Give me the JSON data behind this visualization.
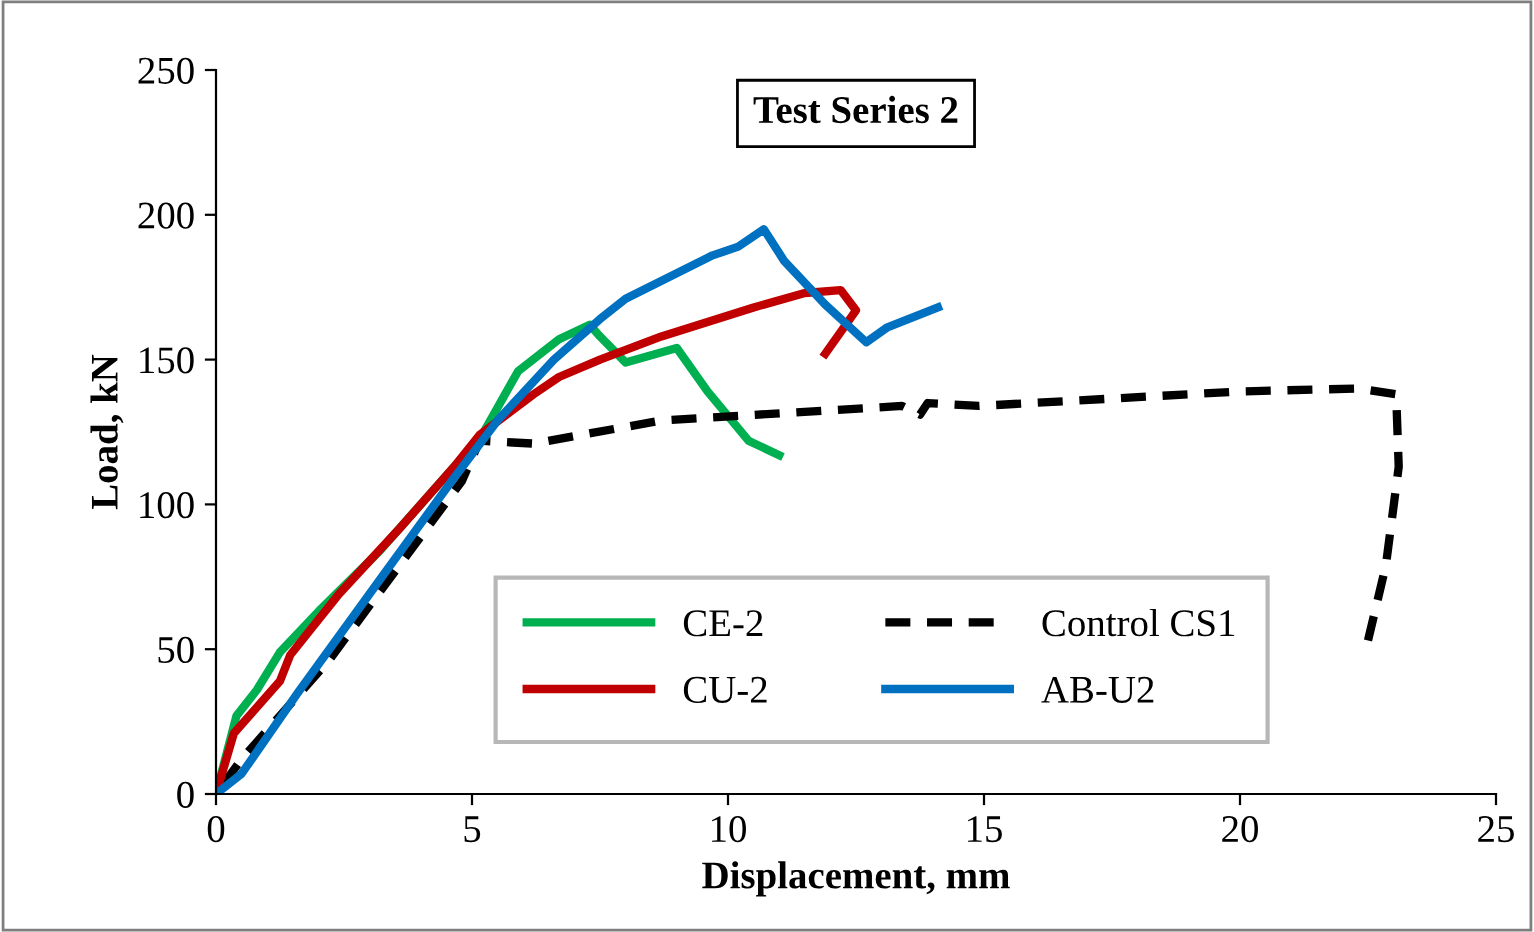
{
  "chart_data": {
    "type": "line",
    "title": "Test Series 2",
    "xlabel": "Displacement, mm",
    "ylabel": "Load, kN",
    "xlim": [
      0,
      25
    ],
    "ylim": [
      0,
      250
    ],
    "xticks": [
      0,
      5,
      10,
      15,
      20,
      25
    ],
    "yticks": [
      0,
      50,
      100,
      150,
      200,
      250
    ],
    "grid": false,
    "legend": "bottom",
    "marker": "none",
    "series": [
      {
        "name": "CE-2",
        "color": "#00b050",
        "line_style": "solid",
        "x": [
          0,
          0.4,
          0.8,
          1.25,
          2,
          3.2,
          4.4,
          5.2,
          5.9,
          6.7,
          7.3,
          7.5,
          8,
          9,
          9.6,
          10.4,
          11
        ],
        "values": [
          0,
          27,
          36,
          49,
          63,
          84,
          108,
          124,
          146,
          157,
          162,
          158,
          149,
          154,
          139,
          122,
          117
        ]
      },
      {
        "name": "Control CS1",
        "color": "#000000",
        "line_style": "dashed",
        "x": [
          0,
          0.5,
          2.2,
          4.8,
          5.15,
          6.2,
          8.7,
          13.4,
          13.75,
          13.9,
          14.9,
          20,
          22.3,
          23.05,
          23.1,
          22.85,
          22.5
        ],
        "values": [
          0,
          12,
          46,
          108,
          122,
          121,
          129,
          134,
          131,
          135,
          134,
          139,
          140,
          138,
          113,
          79,
          53
        ]
      },
      {
        "name": "CU-2",
        "color": "#c00000",
        "line_style": "solid",
        "x": [
          0,
          0.35,
          1.25,
          1.45,
          2.4,
          3.6,
          4.65,
          5.15,
          6.2,
          6.7,
          7.5,
          8.7,
          10.5,
          11.5,
          12.2,
          12.5,
          11.9
        ],
        "values": [
          0,
          21,
          39,
          48,
          69,
          92,
          113,
          124,
          138,
          144,
          150,
          158,
          168,
          173,
          174,
          167,
          152
        ]
      },
      {
        "name": "AB-U2",
        "color": "#0070c0",
        "line_style": "solid",
        "x": [
          0,
          0.5,
          1.6,
          3.2,
          4.6,
          5.5,
          6.6,
          7.5,
          8,
          9.7,
          10.2,
          10.7,
          11.1,
          11.9,
          12.7,
          13.1,
          14.1
        ],
        "values": [
          0,
          7,
          35,
          74,
          108,
          129,
          150,
          164,
          171,
          186,
          189,
          195,
          184,
          169,
          156,
          161,
          168
        ]
      }
    ]
  }
}
